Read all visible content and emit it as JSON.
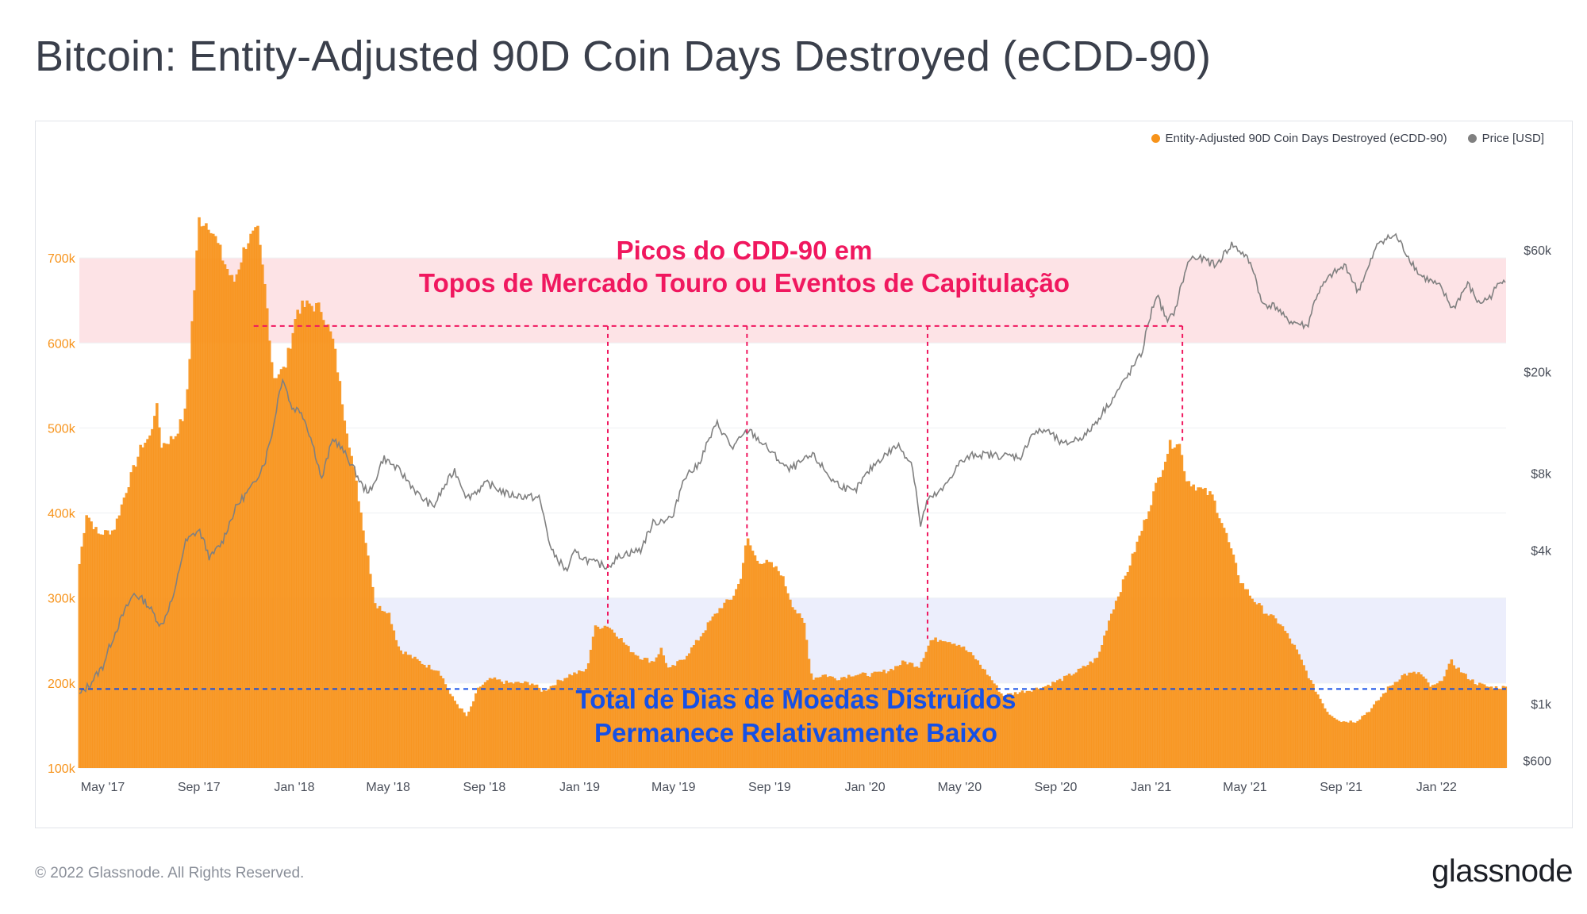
{
  "title": "Bitcoin: Entity-Adjusted 90D Coin Days Destroyed (eCDD-90)",
  "footer": {
    "copyright": "© 2022 Glassnode. All Rights Reserved.",
    "brand": "glassnode"
  },
  "colors": {
    "cdd": "#f7931a",
    "price": "#808080",
    "annotation_red": "#f0185f",
    "annotation_blue": "#1550e6"
  },
  "legend": {
    "cdd_label": "Entity-Adjusted 90D Coin Days Destroyed (eCDD-90)",
    "price_label": "Price [USD]"
  },
  "chart_data": {
    "type": "area",
    "title": "Bitcoin: Entity-Adjusted 90D Coin Days Destroyed (eCDD-90)",
    "x_range": [
      "2017-04-01",
      "2022-03-31"
    ],
    "x_ticks": [
      {
        "label": "May '17",
        "date": "2017-05-01"
      },
      {
        "label": "Sep '17",
        "date": "2017-09-01"
      },
      {
        "label": "Jan '18",
        "date": "2018-01-01"
      },
      {
        "label": "May '18",
        "date": "2018-05-01"
      },
      {
        "label": "Sep '18",
        "date": "2018-09-01"
      },
      {
        "label": "Jan '19",
        "date": "2019-01-01"
      },
      {
        "label": "May '19",
        "date": "2019-05-01"
      },
      {
        "label": "Sep '19",
        "date": "2019-09-01"
      },
      {
        "label": "Jan '20",
        "date": "2020-01-01"
      },
      {
        "label": "May '20",
        "date": "2020-05-01"
      },
      {
        "label": "Sep '20",
        "date": "2020-09-01"
      },
      {
        "label": "Jan '21",
        "date": "2021-01-01"
      },
      {
        "label": "May '21",
        "date": "2021-05-01"
      },
      {
        "label": "Sep '21",
        "date": "2021-09-01"
      },
      {
        "label": "Jan '22",
        "date": "2022-01-01"
      }
    ],
    "y_left": {
      "scale": "linear",
      "range": [
        100000,
        800000
      ],
      "ticks": [
        {
          "label": "100k",
          "value": 100000
        },
        {
          "label": "200k",
          "value": 200000
        },
        {
          "label": "300k",
          "value": 300000
        },
        {
          "label": "400k",
          "value": 400000
        },
        {
          "label": "500k",
          "value": 500000
        },
        {
          "label": "600k",
          "value": 600000
        },
        {
          "label": "700k",
          "value": 700000
        }
      ]
    },
    "y_right": {
      "scale": "log",
      "range": [
        560,
        120000
      ],
      "ticks": [
        {
          "label": "$600",
          "value": 600
        },
        {
          "label": "$1k",
          "value": 1000
        },
        {
          "label": "$4k",
          "value": 4000
        },
        {
          "label": "$8k",
          "value": 8000
        },
        {
          "label": "$20k",
          "value": 20000
        },
        {
          "label": "$60k",
          "value": 60000
        }
      ]
    },
    "series": [
      {
        "name": "Entity-Adjusted 90D Coin Days Destroyed (eCDD-90)",
        "axis": "left",
        "style": "bars",
        "points": [
          [
            "2017-04-01",
            340000
          ],
          [
            "2017-04-10",
            400000
          ],
          [
            "2017-04-25",
            375000
          ],
          [
            "2017-05-15",
            380000
          ],
          [
            "2017-06-01",
            430000
          ],
          [
            "2017-06-20",
            480000
          ],
          [
            "2017-07-01",
            490000
          ],
          [
            "2017-07-08",
            530000
          ],
          [
            "2017-07-15",
            480000
          ],
          [
            "2017-08-01",
            490000
          ],
          [
            "2017-08-15",
            520000
          ],
          [
            "2017-08-25",
            650000
          ],
          [
            "2017-09-01",
            745000
          ],
          [
            "2017-09-15",
            740000
          ],
          [
            "2017-10-01",
            700000
          ],
          [
            "2017-10-15",
            670000
          ],
          [
            "2017-11-01",
            720000
          ],
          [
            "2017-11-15",
            730000
          ],
          [
            "2017-11-25",
            660000
          ],
          [
            "2017-12-05",
            560000
          ],
          [
            "2017-12-20",
            570000
          ],
          [
            "2018-01-05",
            640000
          ],
          [
            "2018-01-20",
            645000
          ],
          [
            "2018-02-05",
            640000
          ],
          [
            "2018-02-20",
            600000
          ],
          [
            "2018-03-05",
            520000
          ],
          [
            "2018-03-20",
            440000
          ],
          [
            "2018-04-05",
            350000
          ],
          [
            "2018-04-15",
            290000
          ],
          [
            "2018-05-01",
            285000
          ],
          [
            "2018-05-15",
            240000
          ],
          [
            "2018-06-01",
            230000
          ],
          [
            "2018-06-20",
            220000
          ],
          [
            "2018-07-05",
            215000
          ],
          [
            "2018-07-20",
            185000
          ],
          [
            "2018-08-10",
            160000
          ],
          [
            "2018-08-25",
            195000
          ],
          [
            "2018-09-10",
            205000
          ],
          [
            "2018-10-01",
            200000
          ],
          [
            "2018-11-01",
            200000
          ],
          [
            "2018-11-15",
            190000
          ],
          [
            "2018-12-01",
            200000
          ],
          [
            "2018-12-20",
            210000
          ],
          [
            "2019-01-10",
            215000
          ],
          [
            "2019-01-20",
            265000
          ],
          [
            "2019-02-05",
            268000
          ],
          [
            "2019-02-20",
            255000
          ],
          [
            "2019-03-05",
            240000
          ],
          [
            "2019-03-20",
            230000
          ],
          [
            "2019-04-05",
            225000
          ],
          [
            "2019-04-15",
            240000
          ],
          [
            "2019-04-25",
            215000
          ],
          [
            "2019-05-15",
            230000
          ],
          [
            "2019-06-01",
            250000
          ],
          [
            "2019-06-15",
            270000
          ],
          [
            "2019-07-01",
            290000
          ],
          [
            "2019-07-15",
            300000
          ],
          [
            "2019-07-25",
            320000
          ],
          [
            "2019-08-03",
            370000
          ],
          [
            "2019-08-15",
            345000
          ],
          [
            "2019-09-01",
            340000
          ],
          [
            "2019-09-15",
            330000
          ],
          [
            "2019-10-01",
            290000
          ],
          [
            "2019-10-15",
            270000
          ],
          [
            "2019-10-25",
            205000
          ],
          [
            "2019-11-10",
            210000
          ],
          [
            "2019-11-25",
            205000
          ],
          [
            "2019-12-15",
            210000
          ],
          [
            "2020-01-10",
            210000
          ],
          [
            "2020-02-01",
            215000
          ],
          [
            "2020-02-20",
            225000
          ],
          [
            "2020-03-10",
            220000
          ],
          [
            "2020-03-25",
            250000
          ],
          [
            "2020-04-10",
            252000
          ],
          [
            "2020-05-01",
            245000
          ],
          [
            "2020-05-20",
            230000
          ],
          [
            "2020-06-10",
            205000
          ],
          [
            "2020-06-25",
            185000
          ],
          [
            "2020-07-20",
            190000
          ],
          [
            "2020-08-15",
            195000
          ],
          [
            "2020-09-10",
            205000
          ],
          [
            "2020-10-01",
            215000
          ],
          [
            "2020-10-25",
            230000
          ],
          [
            "2020-11-10",
            280000
          ],
          [
            "2020-12-01",
            330000
          ],
          [
            "2020-12-20",
            380000
          ],
          [
            "2021-01-10",
            440000
          ],
          [
            "2021-01-25",
            480000
          ],
          [
            "2021-02-05",
            485000
          ],
          [
            "2021-02-15",
            440000
          ],
          [
            "2021-03-01",
            430000
          ],
          [
            "2021-03-20",
            420000
          ],
          [
            "2021-04-05",
            380000
          ],
          [
            "2021-04-25",
            320000
          ],
          [
            "2021-05-10",
            300000
          ],
          [
            "2021-05-25",
            285000
          ],
          [
            "2021-06-15",
            270000
          ],
          [
            "2021-07-05",
            240000
          ],
          [
            "2021-07-25",
            200000
          ],
          [
            "2021-08-15",
            165000
          ],
          [
            "2021-09-01",
            155000
          ],
          [
            "2021-09-20",
            155000
          ],
          [
            "2021-10-10",
            170000
          ],
          [
            "2021-11-01",
            195000
          ],
          [
            "2021-11-20",
            210000
          ],
          [
            "2021-12-10",
            212000
          ],
          [
            "2021-12-25",
            195000
          ],
          [
            "2022-01-05",
            200000
          ],
          [
            "2022-01-20",
            225000
          ],
          [
            "2022-02-05",
            210000
          ],
          [
            "2022-02-20",
            200000
          ],
          [
            "2022-03-10",
            195000
          ],
          [
            "2022-03-31",
            195000
          ]
        ]
      },
      {
        "name": "Price [USD]",
        "axis": "right",
        "style": "line",
        "points": [
          [
            "2017-04-01",
            1080
          ],
          [
            "2017-04-15",
            1200
          ],
          [
            "2017-05-01",
            1400
          ],
          [
            "2017-05-20",
            2000
          ],
          [
            "2017-06-10",
            2700
          ],
          [
            "2017-06-25",
            2500
          ],
          [
            "2017-07-15",
            2000
          ],
          [
            "2017-08-01",
            2700
          ],
          [
            "2017-08-15",
            4300
          ],
          [
            "2017-09-01",
            4800
          ],
          [
            "2017-09-15",
            3700
          ],
          [
            "2017-10-01",
            4300
          ],
          [
            "2017-10-20",
            6000
          ],
          [
            "2017-11-10",
            7200
          ],
          [
            "2017-11-25",
            9000
          ],
          [
            "2017-12-05",
            12000
          ],
          [
            "2017-12-17",
            19000
          ],
          [
            "2017-12-28",
            14500
          ],
          [
            "2018-01-10",
            14000
          ],
          [
            "2018-01-20",
            11500
          ],
          [
            "2018-02-05",
            7500
          ],
          [
            "2018-02-20",
            11000
          ],
          [
            "2018-03-10",
            9200
          ],
          [
            "2018-03-30",
            7000
          ],
          [
            "2018-04-10",
            6800
          ],
          [
            "2018-04-25",
            9200
          ],
          [
            "2018-05-15",
            8200
          ],
          [
            "2018-06-10",
            6500
          ],
          [
            "2018-06-28",
            5900
          ],
          [
            "2018-07-25",
            8200
          ],
          [
            "2018-08-10",
            6400
          ],
          [
            "2018-09-05",
            7300
          ],
          [
            "2018-10-01",
            6600
          ],
          [
            "2018-11-10",
            6400
          ],
          [
            "2018-11-25",
            4000
          ],
          [
            "2018-12-15",
            3300
          ],
          [
            "2018-12-25",
            3900
          ],
          [
            "2019-01-15",
            3600
          ],
          [
            "2019-02-05",
            3450
          ],
          [
            "2019-02-25",
            3850
          ],
          [
            "2019-03-20",
            4000
          ],
          [
            "2019-04-05",
            5100
          ],
          [
            "2019-05-01",
            5400
          ],
          [
            "2019-05-15",
            7800
          ],
          [
            "2019-06-01",
            8500
          ],
          [
            "2019-06-26",
            12500
          ],
          [
            "2019-07-15",
            10000
          ],
          [
            "2019-08-05",
            11800
          ],
          [
            "2019-09-01",
            9800
          ],
          [
            "2019-09-25",
            8200
          ],
          [
            "2019-10-26",
            9400
          ],
          [
            "2019-11-20",
            7500
          ],
          [
            "2019-12-18",
            6700
          ],
          [
            "2020-01-15",
            8800
          ],
          [
            "2020-02-12",
            10300
          ],
          [
            "2020-03-01",
            8700
          ],
          [
            "2020-03-12",
            4900
          ],
          [
            "2020-03-20",
            6200
          ],
          [
            "2020-04-10",
            6900
          ],
          [
            "2020-04-30",
            8700
          ],
          [
            "2020-05-20",
            9500
          ],
          [
            "2020-06-15",
            9400
          ],
          [
            "2020-07-20",
            9300
          ],
          [
            "2020-08-01",
            11400
          ],
          [
            "2020-08-20",
            11800
          ],
          [
            "2020-09-10",
            10300
          ],
          [
            "2020-10-10",
            11300
          ],
          [
            "2020-10-25",
            13000
          ],
          [
            "2020-11-15",
            16000
          ],
          [
            "2020-12-01",
            19000
          ],
          [
            "2020-12-20",
            23500
          ],
          [
            "2021-01-08",
            40000
          ],
          [
            "2021-01-22",
            31000
          ],
          [
            "2021-02-01",
            35000
          ],
          [
            "2021-02-20",
            56000
          ],
          [
            "2021-03-10",
            55000
          ],
          [
            "2021-03-25",
            52000
          ],
          [
            "2021-04-14",
            63000
          ],
          [
            "2021-05-01",
            57000
          ],
          [
            "2021-05-12",
            50000
          ],
          [
            "2021-05-22",
            37000
          ],
          [
            "2021-06-10",
            36000
          ],
          [
            "2021-06-22",
            32000
          ],
          [
            "2021-07-20",
            30000
          ],
          [
            "2021-08-01",
            40000
          ],
          [
            "2021-08-20",
            48000
          ],
          [
            "2021-09-07",
            52000
          ],
          [
            "2021-09-22",
            41000
          ],
          [
            "2021-10-05",
            50000
          ],
          [
            "2021-10-20",
            65000
          ],
          [
            "2021-11-10",
            68000
          ],
          [
            "2021-11-25",
            57000
          ],
          [
            "2021-12-10",
            48000
          ],
          [
            "2022-01-05",
            43000
          ],
          [
            "2022-01-22",
            35000
          ],
          [
            "2022-02-10",
            44000
          ],
          [
            "2022-02-24",
            37000
          ],
          [
            "2022-03-10",
            39000
          ],
          [
            "2022-03-29",
            47000
          ],
          [
            "2022-03-31",
            45500
          ]
        ]
      }
    ],
    "highlight_bands": [
      {
        "axis": "left",
        "from": 600000,
        "to": 700000,
        "color": "#fde3e6",
        "meaning": "bull market top / capitulation peak zone"
      },
      {
        "axis": "left",
        "from": 200000,
        "to": 300000,
        "color": "#eceefc",
        "meaning": "low coin days destroyed zone"
      }
    ],
    "reference_lines": [
      {
        "axis": "left",
        "value": 620000,
        "from": "2017-11-10",
        "to": "2021-02-10",
        "style": "dashed",
        "color": "#f0185f"
      },
      {
        "axis": "left",
        "value": 193000,
        "from": "2017-04-01",
        "to": "2022-03-31",
        "style": "dashed",
        "color": "#1550e6"
      }
    ],
    "event_markers": [
      {
        "date": "2019-02-06",
        "from": 620000,
        "to": 265000
      },
      {
        "date": "2019-08-03",
        "from": 620000,
        "to": 368000
      },
      {
        "date": "2020-03-21",
        "from": 620000,
        "to": 252000
      },
      {
        "date": "2021-02-10",
        "from": 620000,
        "to": 485000
      }
    ],
    "annotations": {
      "top_line1": "Picos do CDD-90 em",
      "top_line2": "Topos de Mercado Touro ou Eventos de Capitulação",
      "bottom_line1": "Total de Dias de Moedas Distruídos",
      "bottom_line2": "Permanece Relativamente Baixo"
    }
  }
}
